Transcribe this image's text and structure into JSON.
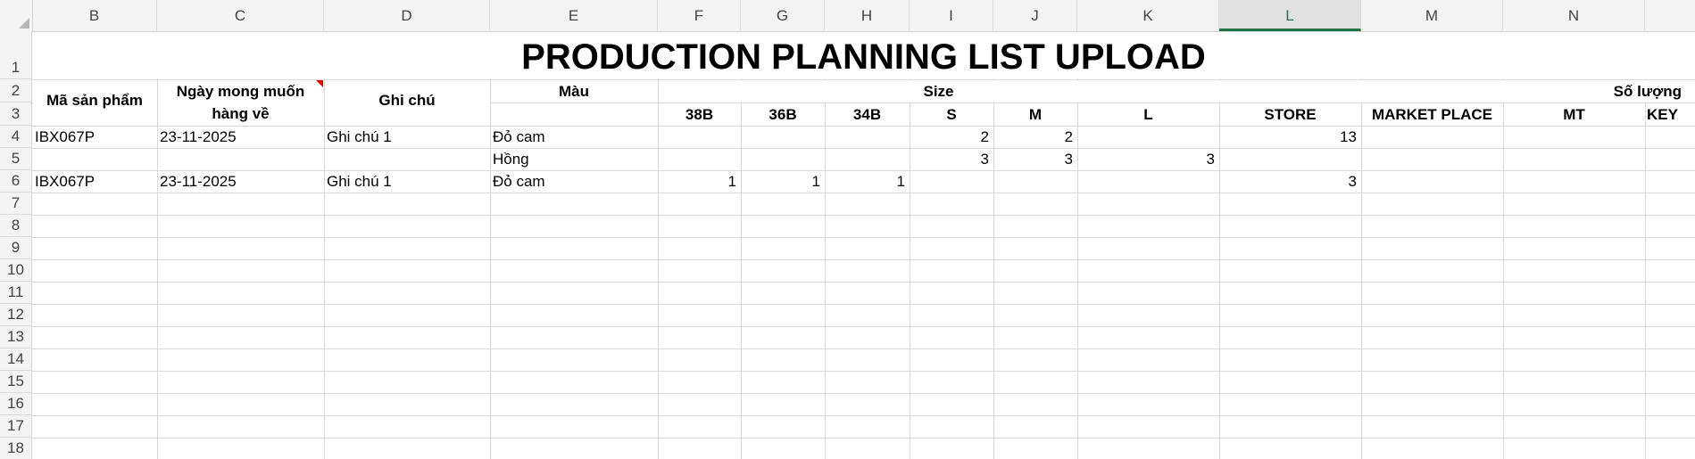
{
  "columns": [
    "B",
    "C",
    "D",
    "E",
    "F",
    "G",
    "H",
    "I",
    "J",
    "K",
    "L",
    "M",
    "N"
  ],
  "active_column": "L",
  "rows": [
    "1",
    "2",
    "3",
    "4",
    "5",
    "6",
    "7",
    "8",
    "9",
    "10",
    "11",
    "12",
    "13",
    "14",
    "15",
    "16",
    "17",
    "18"
  ],
  "title": "PRODUCTION PLANNING LIST UPLOAD",
  "headers": {
    "product_code": "Mã sản phẩm",
    "desired_date_line1": "Ngày mong muốn",
    "desired_date_line2": "hàng về",
    "note": "Ghi chú",
    "color": "Màu",
    "size": "Size",
    "quantity": "Số lượng",
    "sizes": [
      "38B",
      "36B",
      "34B",
      "S",
      "M",
      "L"
    ],
    "channels": [
      "STORE",
      "MARKET PLACE",
      "MT",
      "KEY"
    ]
  },
  "data_rows": [
    {
      "row": "4",
      "product": "IBX067P",
      "date": "23-11-2025",
      "note": "Ghi chú 1",
      "color": "Đỏ cam",
      "sizes": [
        "",
        "",
        "",
        "2",
        "2",
        ""
      ],
      "store": "13"
    },
    {
      "row": "5",
      "product": "",
      "date": "",
      "note": "",
      "color": "Hồng",
      "sizes": [
        "",
        "",
        "",
        "3",
        "3",
        "3"
      ],
      "store": ""
    },
    {
      "row": "6",
      "product": "IBX067P",
      "date": "23-11-2025",
      "note": "Ghi chú 1",
      "color": "Đỏ cam",
      "sizes": [
        "1",
        "1",
        "1",
        "",
        "",
        ""
      ],
      "store": "3"
    }
  ],
  "colors": {
    "accent": "#217346",
    "comment_flag": "#e00000",
    "gridline": "#dadada"
  }
}
